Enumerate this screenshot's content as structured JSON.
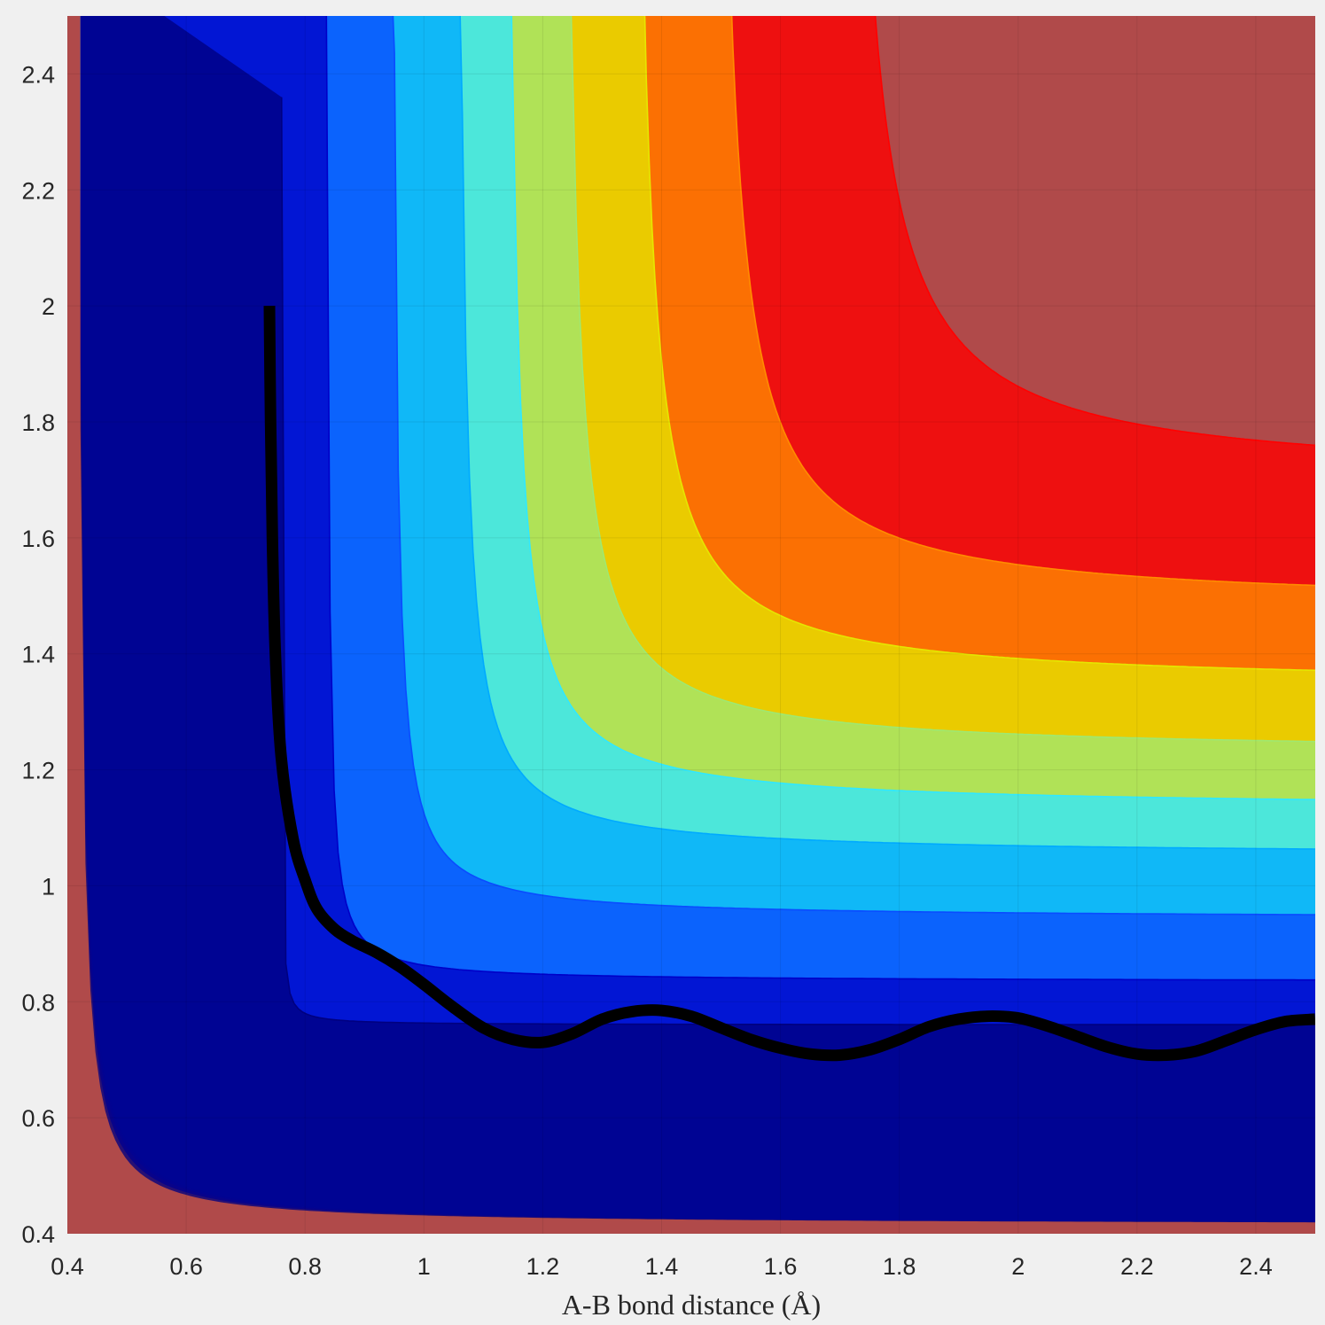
{
  "chart_data": {
    "type": "heatmap",
    "subtype": "filled-contour",
    "colormap": "jet",
    "title": "",
    "xlabel": "A-B bond distance (Å)",
    "ylabel": "",
    "xlim": [
      0.4,
      2.5
    ],
    "ylim": [
      0.4,
      2.5
    ],
    "x_ticks": [
      "0.4",
      "0.6",
      "0.8",
      "1",
      "1.2",
      "1.4",
      "1.6",
      "1.8",
      "2",
      "2.2",
      "2.4"
    ],
    "y_ticks": [
      "0.4",
      "0.6",
      "0.8",
      "1",
      "1.2",
      "1.4",
      "1.6",
      "1.8",
      "2",
      "2.2",
      "2.4"
    ],
    "grid": true,
    "surface": {
      "equilibrium_distance": 0.74,
      "description_levels": 9
    },
    "contour_levels": [
      {
        "offset": 0.0,
        "color": "#000080"
      },
      {
        "offset": 0.11,
        "color": "#0000c8"
      },
      {
        "offset": 0.27,
        "color": "#0a4cff"
      },
      {
        "offset": 0.43,
        "color": "#00aaff"
      },
      {
        "offset": 0.55,
        "color": "#30e8ff"
      },
      {
        "offset": 0.69,
        "color": "#9fe870"
      },
      {
        "offset": 0.86,
        "color": "#e6e600"
      },
      {
        "offset": 1.06,
        "color": "#ff8c00"
      },
      {
        "offset": 1.38,
        "color": "#ff0000"
      }
    ],
    "saturated_color": "#b04a4a",
    "series": [
      {
        "type": "line",
        "color": "#000000",
        "x": [
          0.74,
          0.742,
          0.745,
          0.75,
          0.76,
          0.78,
          0.8,
          0.82,
          0.85,
          0.88,
          0.92,
          0.96,
          1.0,
          1.05,
          1.1,
          1.15,
          1.2,
          1.25,
          1.3,
          1.35,
          1.4,
          1.45,
          1.5,
          1.55,
          1.6,
          1.65,
          1.7,
          1.75,
          1.8,
          1.85,
          1.9,
          1.95,
          2.0,
          2.05,
          2.1,
          2.15,
          2.2,
          2.25,
          2.3,
          2.35,
          2.4,
          2.45,
          2.5
        ],
        "y": [
          2.0,
          1.8,
          1.6,
          1.4,
          1.22,
          1.08,
          1.01,
          0.96,
          0.925,
          0.905,
          0.885,
          0.86,
          0.83,
          0.79,
          0.755,
          0.735,
          0.73,
          0.745,
          0.77,
          0.783,
          0.785,
          0.775,
          0.755,
          0.735,
          0.72,
          0.71,
          0.708,
          0.717,
          0.735,
          0.757,
          0.77,
          0.775,
          0.772,
          0.758,
          0.74,
          0.722,
          0.71,
          0.708,
          0.715,
          0.733,
          0.752,
          0.766,
          0.77
        ]
      }
    ]
  }
}
